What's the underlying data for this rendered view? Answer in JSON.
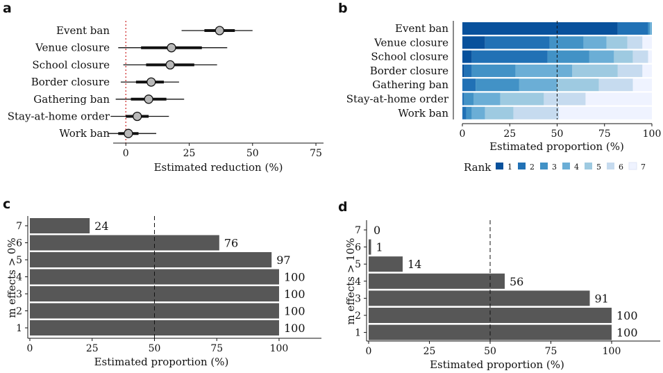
{
  "panel_labels": {
    "a": "a",
    "b": "b",
    "c": "c",
    "d": "d"
  },
  "colors": {
    "bar_dark": "#575757",
    "point_fill": "#b9b9b9",
    "zero_line": "#cc2222",
    "rank": [
      "#08519c",
      "#2171b5",
      "#4292c6",
      "#6baed6",
      "#9ecae1",
      "#c6dbef",
      "#eff3ff"
    ]
  },
  "chart_data": [
    {
      "panel": "a",
      "type": "forest",
      "categories": [
        "Event ban",
        "Venue closure",
        "School closure",
        "Border closure",
        "Gathering ban",
        "Stay-at-home order",
        "Work ban"
      ],
      "median": [
        37,
        18,
        17.5,
        10,
        9,
        4.5,
        1
      ],
      "inner_lo": [
        31,
        6,
        8,
        4,
        2,
        0,
        -3
      ],
      "inner_hi": [
        43,
        30,
        27,
        15,
        16,
        9,
        5
      ],
      "outer_lo": [
        22,
        -3,
        -1,
        -2,
        -4,
        -6,
        -7
      ],
      "outer_hi": [
        50,
        40,
        36,
        21,
        23,
        17,
        12
      ],
      "xticks": [
        "0",
        "25",
        "50",
        "75"
      ],
      "xlim": [
        -5,
        78
      ],
      "reference_line": 0,
      "xlabel": "Estimated reduction (%)"
    },
    {
      "panel": "b",
      "type": "stacked-bar",
      "categories": [
        "Event ban",
        "Venue closure",
        "School closure",
        "Border closure",
        "Gathering ban",
        "Stay-at-home order",
        "Work ban"
      ],
      "series": [
        {
          "name": "1",
          "values": [
            82,
            12,
            5,
            1,
            0,
            0,
            0
          ]
        },
        {
          "name": "2",
          "values": [
            16,
            34,
            40,
            4,
            7,
            1,
            2
          ]
        },
        {
          "name": "3",
          "values": [
            1,
            18,
            22,
            23,
            23,
            5,
            3
          ]
        },
        {
          "name": "4",
          "values": [
            1,
            12,
            13,
            30,
            20,
            14,
            7
          ]
        },
        {
          "name": "5",
          "values": [
            0,
            11,
            10,
            24,
            22,
            23,
            15
          ]
        },
        {
          "name": "6",
          "values": [
            0,
            8,
            8,
            13,
            18,
            22,
            24
          ]
        },
        {
          "name": "7",
          "values": [
            0,
            5,
            2,
            5,
            10,
            35,
            49
          ]
        }
      ],
      "xticks": [
        "0",
        "25",
        "50",
        "75",
        "100"
      ],
      "xlim": [
        0,
        100
      ],
      "reference_line": 50,
      "xlabel": "Estimated proportion (%)",
      "legend_title": "Rank",
      "legend_position": "bottom"
    },
    {
      "panel": "c",
      "type": "bar",
      "categories": [
        "7",
        "6",
        "5",
        "4",
        "3",
        "2",
        "1"
      ],
      "values": [
        24,
        76,
        97,
        100,
        100,
        100,
        100
      ],
      "value_labels": [
        "24",
        "76",
        "97",
        "100",
        "100",
        "100",
        "100"
      ],
      "xticks": [
        "0",
        "25",
        "50",
        "75",
        "100"
      ],
      "xlim": [
        0,
        117
      ],
      "reference_line": 50,
      "xlabel": "Estimated proportion (%)",
      "ylabel": "m effects > 0%"
    },
    {
      "panel": "d",
      "type": "bar",
      "categories": [
        "7",
        "6",
        "5",
        "4",
        "3",
        "2",
        "1"
      ],
      "values": [
        0,
        1,
        14,
        56,
        91,
        100,
        100
      ],
      "value_labels": [
        "0",
        "1",
        "14",
        "56",
        "91",
        "100",
        "100"
      ],
      "xticks": [
        "0",
        "25",
        "50",
        "75",
        "100"
      ],
      "xlim": [
        0,
        120
      ],
      "reference_line": 50,
      "xlabel": "Estimated proportion (%)",
      "ylabel": "m effects > 10%"
    }
  ]
}
